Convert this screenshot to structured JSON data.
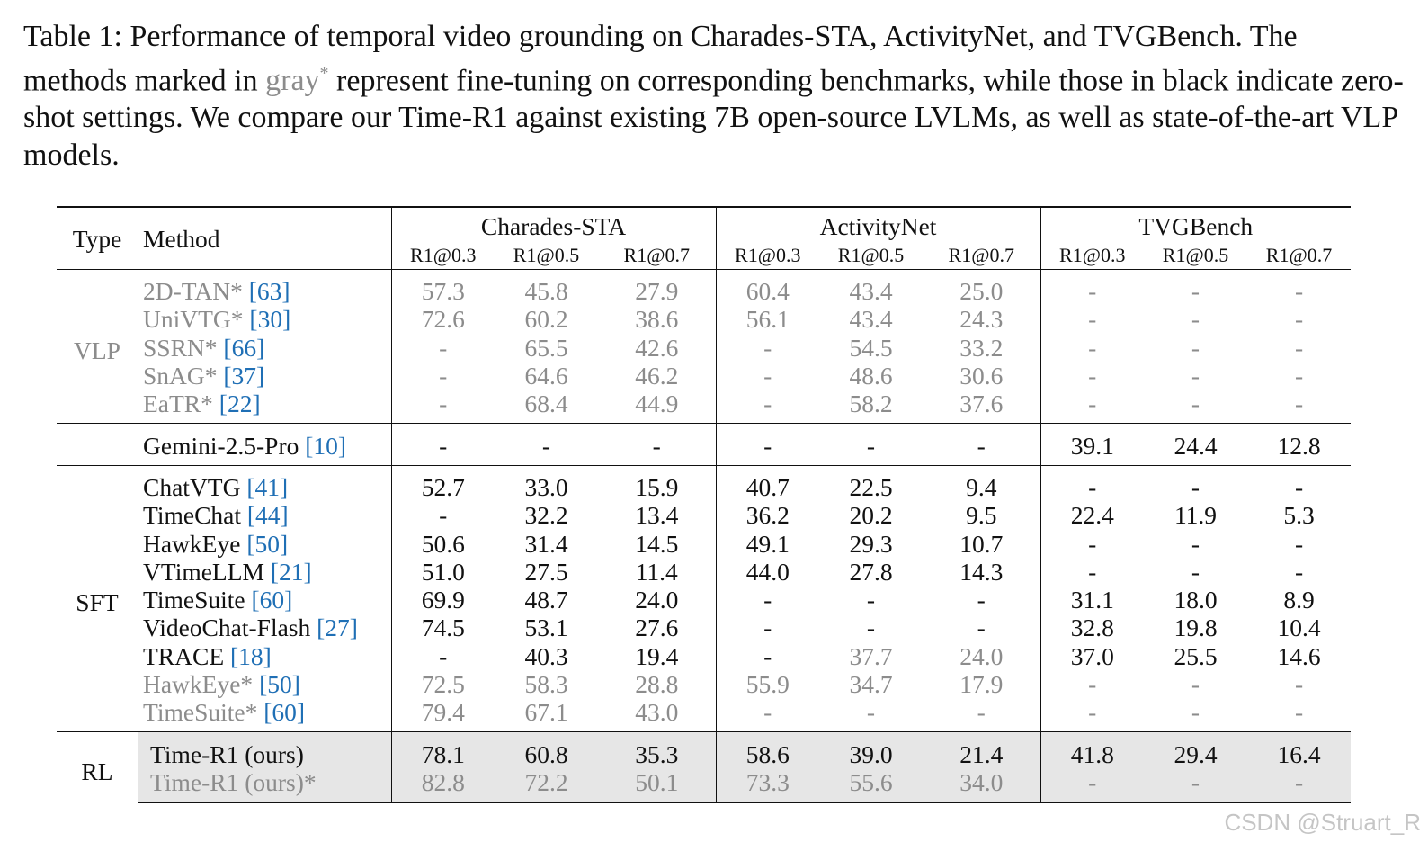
{
  "caption": {
    "part1": "Table 1: Performance of temporal video grounding on Charades-STA, ActivityNet, and TVGBench. The methods marked in ",
    "gray_word": "gray",
    "star": "*",
    "part2": " represent fine-tuning on corresponding benchmarks, while those in black indicate zero-shot settings. We compare our Time-R1 against existing 7B open-source LVLMs, as well as state-of-the-art VLP models."
  },
  "header": {
    "type": "Type",
    "method": "Method",
    "groups": [
      "Charades-STA",
      "ActivityNet",
      "TVGBench"
    ],
    "metrics": [
      "R1@0.3",
      "R1@0.5",
      "R1@0.7"
    ]
  },
  "sections": [
    {
      "type": "VLP",
      "rows": [
        {
          "name": "2D-TAN*",
          "cite": "[63]",
          "gray": true,
          "vals": [
            "57.3",
            "45.8",
            "27.9",
            "60.4",
            "43.4",
            "25.0",
            "-",
            "-",
            "-"
          ]
        },
        {
          "name": "UniVTG*",
          "cite": "[30]",
          "gray": true,
          "vals": [
            "72.6",
            "60.2",
            "38.6",
            "56.1",
            "43.4",
            "24.3",
            "-",
            "-",
            "-"
          ]
        },
        {
          "name": "SSRN*",
          "cite": "[66]",
          "gray": true,
          "vals": [
            "-",
            "65.5",
            "42.6",
            "-",
            "54.5",
            "33.2",
            "-",
            "-",
            "-"
          ]
        },
        {
          "name": "SnAG*",
          "cite": "[37]",
          "gray": true,
          "vals": [
            "-",
            "64.6",
            "46.2",
            "-",
            "48.6",
            "30.6",
            "-",
            "-",
            "-"
          ]
        },
        {
          "name": "EaTR*",
          "cite": "[22]",
          "gray": true,
          "vals": [
            "-",
            "68.4",
            "44.9",
            "-",
            "58.2",
            "37.6",
            "-",
            "-",
            "-"
          ]
        }
      ]
    },
    {
      "type": "",
      "rows": [
        {
          "name": "Gemini-2.5-Pro",
          "cite": "[10]",
          "gray": false,
          "vals": [
            "-",
            "-",
            "-",
            "-",
            "-",
            "-",
            "39.1",
            "24.4",
            "12.8"
          ]
        }
      ]
    },
    {
      "type": "SFT",
      "rows": [
        {
          "name": "ChatVTG",
          "cite": "[41]",
          "gray": false,
          "vals": [
            "52.7",
            "33.0",
            "15.9",
            "40.7",
            "22.5",
            "9.4",
            "-",
            "-",
            "-"
          ]
        },
        {
          "name": "TimeChat",
          "cite": "[44]",
          "gray": false,
          "vals": [
            "-",
            "32.2",
            "13.4",
            "36.2",
            "20.2",
            "9.5",
            "22.4",
            "11.9",
            "5.3"
          ]
        },
        {
          "name": "HawkEye",
          "cite": "[50]",
          "gray": false,
          "vals": [
            "50.6",
            "31.4",
            "14.5",
            "49.1",
            "29.3",
            "10.7",
            "-",
            "-",
            "-"
          ]
        },
        {
          "name": "VTimeLLM",
          "cite": "[21]",
          "gray": false,
          "vals": [
            "51.0",
            "27.5",
            "11.4",
            "44.0",
            "27.8",
            "14.3",
            "-",
            "-",
            "-"
          ]
        },
        {
          "name": "TimeSuite",
          "cite": "[60]",
          "gray": false,
          "vals": [
            "69.9",
            "48.7",
            "24.0",
            "-",
            "-",
            "-",
            "31.1",
            "18.0",
            "8.9"
          ]
        },
        {
          "name": "VideoChat-Flash",
          "cite": "[27]",
          "gray": false,
          "vals": [
            "74.5",
            "53.1",
            "27.6",
            "-",
            "-",
            "-",
            "32.8",
            "19.8",
            "10.4"
          ]
        },
        {
          "name": "TRACE",
          "cite": "[18]",
          "gray": false,
          "vals": [
            "-",
            "40.3",
            "19.4",
            "-",
            "37.7",
            "24.0",
            "37.0",
            "25.5",
            "14.6"
          ],
          "gray_cols": [
            4,
            5
          ]
        },
        {
          "name": "HawkEye*",
          "cite": "[50]",
          "gray": true,
          "vals": [
            "72.5",
            "58.3",
            "28.8",
            "55.9",
            "34.7",
            "17.9",
            "-",
            "-",
            "-"
          ]
        },
        {
          "name": "TimeSuite*",
          "cite": "[60]",
          "gray": true,
          "vals": [
            "79.4",
            "67.1",
            "43.0",
            "-",
            "-",
            "-",
            "-",
            "-",
            "-"
          ]
        }
      ]
    },
    {
      "type": "RL",
      "rows": [
        {
          "name": "Time-R1 (ours)",
          "cite": "",
          "gray": false,
          "bold": true,
          "vals": [
            "78.1",
            "60.8",
            "35.3",
            "58.6",
            "39.0",
            "21.4",
            "41.8",
            "29.4",
            "16.4"
          ]
        },
        {
          "name": "Time-R1 (ours)*",
          "cite": "",
          "gray": true,
          "vals": [
            "82.8",
            "72.2",
            "50.1",
            "73.3",
            "55.6",
            "34.0",
            "-",
            "-",
            "-"
          ]
        }
      ]
    }
  ],
  "watermark": "CSDN @Struart_R"
}
